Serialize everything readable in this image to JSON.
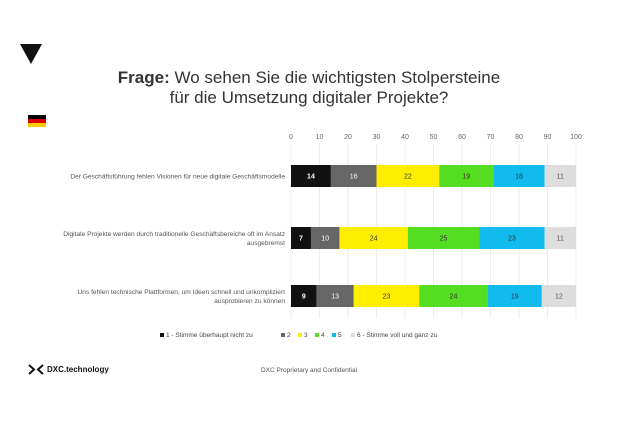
{
  "header": {
    "title_bold": "Frage:",
    "title_rest": " Wo sehen Sie die wichtigsten Stolpersteine",
    "title_line2": "für die Umsetzung digitaler Projekte?"
  },
  "flag": {
    "country": "Germany",
    "colors": [
      "#000000",
      "#dd0000",
      "#ffcc00"
    ]
  },
  "chart_data": {
    "type": "bar",
    "orientation": "horizontal",
    "stacked": true,
    "xlim": [
      0,
      100
    ],
    "x_ticks": [
      "0",
      "10",
      "20",
      "30",
      "40",
      "50",
      "60",
      "70",
      "80",
      "90",
      "100"
    ],
    "categories": [
      [
        "Der Geschäftsführung fehlen Visionen für neue digitale Geschäftsmodelle"
      ],
      [
        "Digitale Projekte werden durch traditionelle Geschäftsbereiche oft im Ansatz",
        "ausgebremst"
      ],
      [
        "Uns fehlen technische Plattformen, um Ideen schnell und unkompliziert",
        "ausprobieren zu können"
      ]
    ],
    "series": [
      {
        "name": "1 - Stimme überhaupt nicht zu",
        "color": "#111111",
        "label_color": "#ffffff",
        "values": [
          14,
          7,
          9
        ]
      },
      {
        "name": "2",
        "color": "#666666",
        "label_color": "#ffffff",
        "values": [
          16,
          10,
          13
        ]
      },
      {
        "name": "3",
        "color": "#ffee00",
        "label_color": "#333333",
        "values": [
          22,
          24,
          23
        ]
      },
      {
        "name": "4",
        "color": "#55dd22",
        "label_color": "#333333",
        "values": [
          19,
          25,
          24
        ]
      },
      {
        "name": "5",
        "color": "#11bbee",
        "label_color": "#333333",
        "values": [
          18,
          23,
          19
        ]
      },
      {
        "name": "6 - Stimme voll und ganz zu",
        "color": "#dddddd",
        "label_color": "#555555",
        "values": [
          11,
          11,
          12
        ]
      }
    ],
    "legend_position": "bottom",
    "grid": true
  },
  "footer": {
    "logo_text": "DXC.technology",
    "center_text": "DXC Proprietary and Confidential"
  }
}
